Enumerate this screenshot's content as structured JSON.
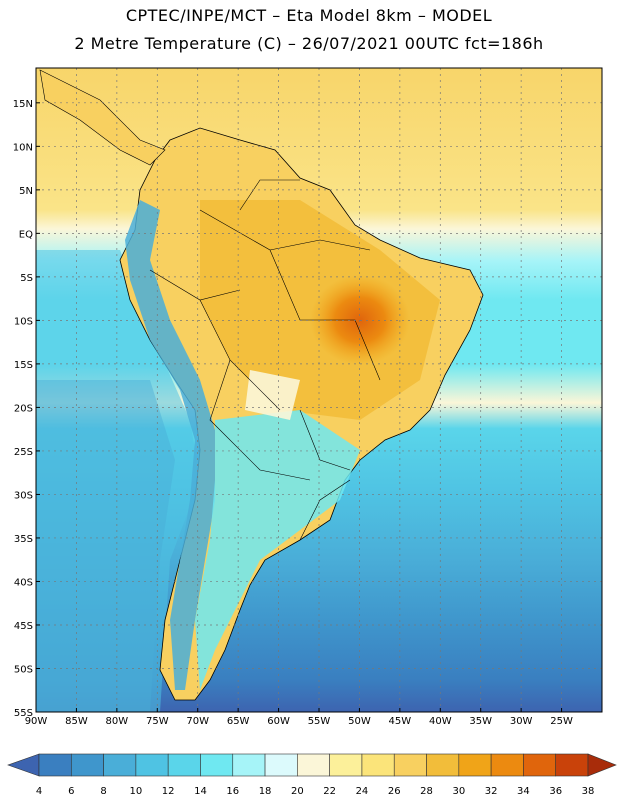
{
  "header": {
    "line1": "CPTEC/INPE/MCT –  Eta Model 8km – MODEL",
    "line2": "2 Metre Temperature (C) – 26/07/2021 00UTC fct=186h"
  },
  "map": {
    "lat_labels": [
      "15N",
      "10N",
      "5N",
      "EQ",
      "5S",
      "10S",
      "15S",
      "20S",
      "25S",
      "30S",
      "35S",
      "40S",
      "45S",
      "50S",
      "55S"
    ],
    "lon_labels": [
      "90W",
      "85W",
      "80W",
      "75W",
      "70W",
      "65W",
      "60W",
      "55W",
      "50W",
      "45W",
      "40W",
      "35W",
      "30W",
      "25W"
    ],
    "lat_range": [
      -55,
      19
    ],
    "lon_range": [
      -90,
      -20
    ],
    "gridlines": true
  },
  "colorbar": {
    "labels": [
      "4",
      "6",
      "8",
      "10",
      "12",
      "14",
      "16",
      "18",
      "20",
      "22",
      "24",
      "26",
      "28",
      "30",
      "32",
      "34",
      "36",
      "38"
    ],
    "colors": [
      "#3d64b0",
      "#3a7fc0",
      "#3f96cc",
      "#4aaed8",
      "#4fc3e3",
      "#5ad5ea",
      "#6fe8f1",
      "#a6f4f8",
      "#dcfafc",
      "#fbf6d8",
      "#fcf09a",
      "#fbe47a",
      "#f8d060",
      "#f2bd3a",
      "#f0a418",
      "#ec8a10",
      "#e0650c",
      "#c9420a",
      "#a82c0a"
    ]
  }
}
